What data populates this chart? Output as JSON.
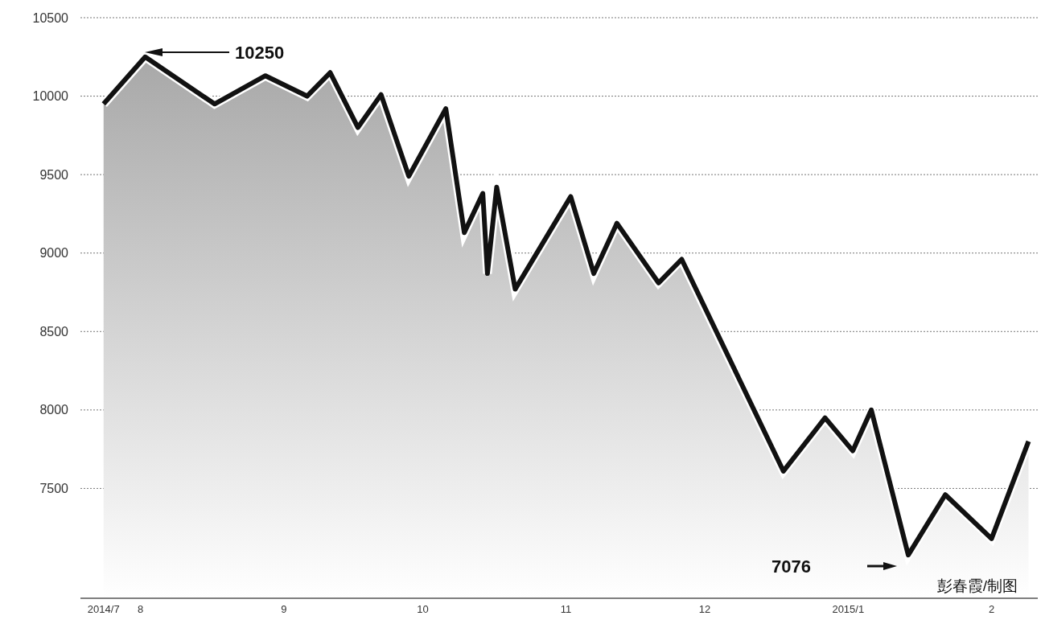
{
  "chart_data": {
    "type": "area",
    "x": [
      "2014-07-24",
      "2014-08-02",
      "2014-08-17",
      "2014-08-28",
      "2014-09-06",
      "2014-09-11",
      "2014-09-17",
      "2014-09-22",
      "2014-09-28",
      "2014-10-06",
      "2014-10-10",
      "2014-10-14",
      "2014-10-15",
      "2014-10-17",
      "2014-10-21",
      "2014-11-02",
      "2014-11-07",
      "2014-11-12",
      "2014-11-21",
      "2014-11-26",
      "2014-12-18",
      "2014-12-27",
      "2015-01-02",
      "2015-01-06",
      "2015-01-14",
      "2015-01-22",
      "2015-02-01",
      "2015-02-09"
    ],
    "series": [
      {
        "color": "#111111",
        "values": [
          9950,
          10250,
          9950,
          10130,
          10000,
          10150,
          9800,
          10010,
          9490,
          9920,
          9130,
          9380,
          8870,
          9420,
          8770,
          9360,
          8870,
          9190,
          8810,
          8960,
          7610,
          7950,
          7740,
          8000,
          7076,
          7460,
          7180,
          7800
        ]
      }
    ],
    "xlim": [
      "2014-07-19",
      "2015-02-11"
    ],
    "ylim": [
      6800,
      10500
    ],
    "xticks": [
      {
        "value": "2014-07-24",
        "label": "2014/7"
      },
      {
        "value": "2014-08-01",
        "label": "8"
      },
      {
        "value": "2014-09-01",
        "label": "9"
      },
      {
        "value": "2014-10-01",
        "label": "10"
      },
      {
        "value": "2014-11-01",
        "label": "11"
      },
      {
        "value": "2014-12-01",
        "label": "12"
      },
      {
        "value": "2015-01-01",
        "label": "2015/1"
      },
      {
        "value": "2015-02-01",
        "label": "2"
      }
    ],
    "yticks": [
      7500,
      8000,
      8500,
      9000,
      9500,
      10000,
      10500
    ],
    "grid": "y",
    "annotations": [
      "10250",
      "7076",
      "彭春霞/制图"
    ]
  }
}
